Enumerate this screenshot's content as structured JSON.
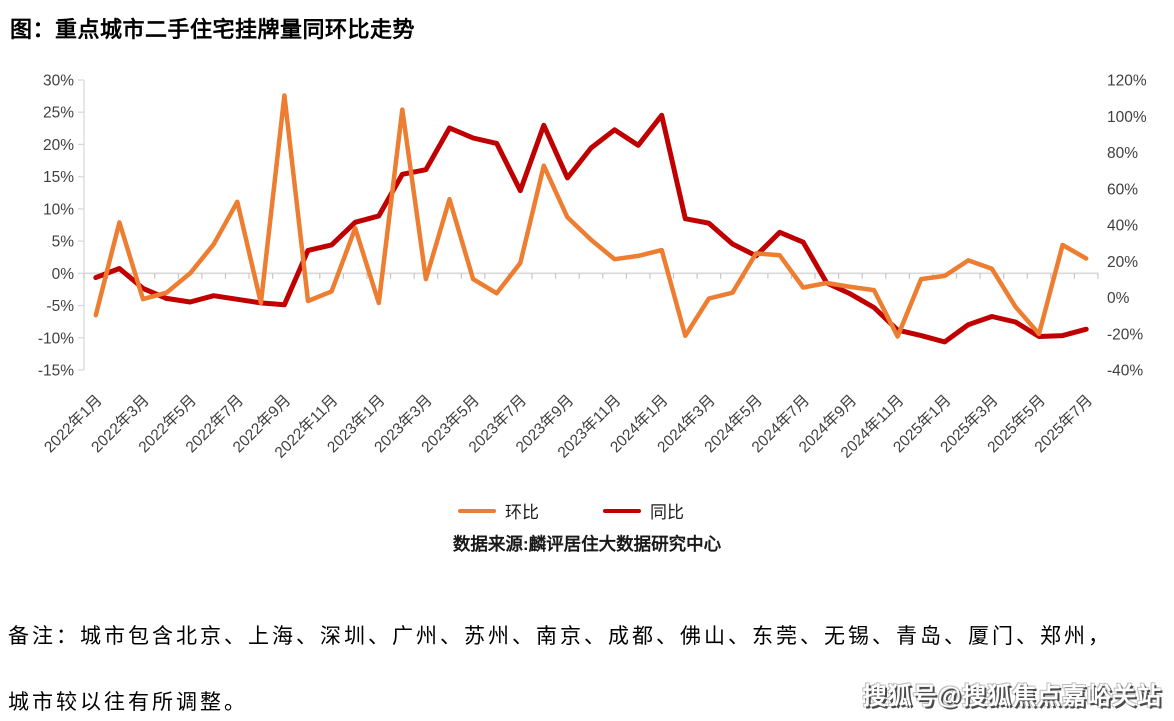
{
  "title": "图：重点城市二手住宅挂牌量同环比走势",
  "chart_data": {
    "type": "line",
    "categories": [
      "2022年1月",
      "2022年2月",
      "2022年3月",
      "2022年4月",
      "2022年5月",
      "2022年6月",
      "2022年7月",
      "2022年8月",
      "2022年9月",
      "2022年10月",
      "2022年11月",
      "2022年12月",
      "2023年1月",
      "2023年2月",
      "2023年3月",
      "2023年4月",
      "2023年5月",
      "2023年6月",
      "2023年7月",
      "2023年8月",
      "2023年9月",
      "2023年10月",
      "2023年11月",
      "2023年12月",
      "2024年1月",
      "2024年2月",
      "2024年3月",
      "2024年4月",
      "2024年5月",
      "2024年6月",
      "2024年7月",
      "2024年8月",
      "2024年9月",
      "2024年10月",
      "2024年11月",
      "2024年12月",
      "2025年1月",
      "2025年2月",
      "2025年3月",
      "2025年4月",
      "2025年5月",
      "2025年6月",
      "2025年7月"
    ],
    "x_axis_labels": [
      "2022年1月",
      "2022年3月",
      "2022年5月",
      "2022年7月",
      "2022年9月",
      "2022年11月",
      "2023年1月",
      "2023年3月",
      "2023年5月",
      "2023年7月",
      "2023年9月",
      "2023年11月",
      "2024年1月",
      "2024年3月",
      "2024年5月",
      "2024年7月",
      "2024年9月",
      "2024年11月",
      "2025年1月",
      "2025年3月",
      "2025年5月",
      "2025年7月"
    ],
    "series": [
      {
        "name": "环比",
        "axis": "left",
        "color": "#ED7D31",
        "values": [
          -6.5,
          7.9,
          -4.0,
          -3.0,
          0.0,
          4.5,
          11.1,
          -4.6,
          27.6,
          -4.3,
          -2.8,
          7.0,
          -4.6,
          25.4,
          -0.9,
          11.5,
          -0.9,
          -3.1,
          1.6,
          16.7,
          8.7,
          5.2,
          2.2,
          2.7,
          3.6,
          -9.7,
          -3.9,
          -3.0,
          3.1,
          2.8,
          -2.2,
          -1.5,
          -2.1,
          -2.6,
          -9.8,
          -0.9,
          -0.4,
          2.0,
          0.7,
          -5.2,
          -9.4,
          4.4,
          2.3
        ]
      },
      {
        "name": "同比",
        "axis": "right",
        "color": "#C00000",
        "values": [
          11,
          16,
          5,
          -0.5,
          -2.5,
          1,
          -1,
          -3,
          -4,
          26,
          29,
          41.5,
          45,
          68,
          70.5,
          93.5,
          88,
          85,
          59,
          95,
          66,
          82.5,
          92.5,
          84,
          100.5,
          43.5,
          41,
          29.5,
          23,
          36,
          30.5,
          8,
          2,
          -5.5,
          -18,
          -21,
          -24.5,
          -15,
          -10.5,
          -13.5,
          -21.5,
          -21,
          -17.5
        ]
      }
    ],
    "left_axis": {
      "unit": "%",
      "min": -15,
      "max": 30,
      "step": 5,
      "ticks": [
        "30%",
        "25%",
        "20%",
        "15%",
        "10%",
        "5%",
        "0%",
        "-5%",
        "-10%",
        "-15%"
      ]
    },
    "right_axis": {
      "unit": "%",
      "min": -40,
      "max": 120,
      "step": 20,
      "ticks": [
        "120%",
        "100%",
        "80%",
        "60%",
        "40%",
        "20%",
        "0%",
        "-20%",
        "-40%"
      ]
    },
    "legend_position": "bottom",
    "gridline_at_zero": true,
    "axis_color": "#d9d9d9",
    "tick_color": "#c8c6c4",
    "axis_text_color": "#3f3f3f"
  },
  "legend": {
    "items": [
      {
        "label": "环比",
        "color": "#ED7D31"
      },
      {
        "label": "同比",
        "color": "#C00000"
      }
    ]
  },
  "source_line": "数据来源:麟评居住大数据研究中心",
  "note": {
    "line1": "备注：城市包含北京、上海、深圳、广州、苏州、南京、成都、佛山、东莞、无锡、青岛、厦门、郑州，",
    "line2": "城市较以往有所调整。"
  },
  "watermark": "搜狐号@搜狐焦点嘉峪关站"
}
